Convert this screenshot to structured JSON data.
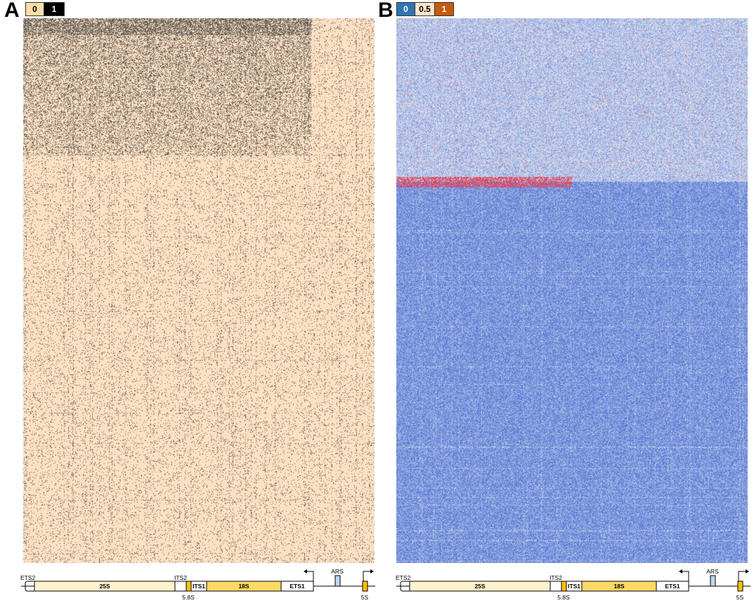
{
  "panels": [
    {
      "letter": "A",
      "legend": [
        {
          "label": "0",
          "color": "#f9dfa6",
          "text_color": "#000000"
        },
        {
          "label": "1",
          "color": "#000000",
          "text_color": "#ffffff"
        }
      ]
    },
    {
      "letter": "B",
      "legend": [
        {
          "label": "0",
          "color": "#2e75b6",
          "text_color": "#ffffff"
        },
        {
          "label": "0.5",
          "color": "#fbe5c8",
          "text_color": "#000000"
        },
        {
          "label": "1",
          "color": "#c55a11",
          "text_color": "#ffffff"
        }
      ]
    }
  ],
  "chart_data": [
    {
      "type": "heatmap",
      "panel": "A",
      "value_scale": [
        0,
        1
      ],
      "colors": {
        "low": "#fde0c3",
        "high": "#3a3a3a"
      },
      "row_blocks": [
        {
          "rows_fraction": [
            0.0,
            0.25
          ],
          "column_range_fraction": [
            0.0,
            0.82
          ],
          "mean_value": 0.3
        },
        {
          "rows_fraction": [
            0.25,
            1.0
          ],
          "column_range_fraction": [
            0.0,
            1.0
          ],
          "mean_value": 0.06
        }
      ]
    },
    {
      "type": "heatmap",
      "panel": "B",
      "value_scale": [
        0,
        0.5,
        1
      ],
      "colors": {
        "low": "#5b7bd5",
        "mid": "#dfe8f2",
        "high": "#e0203a"
      },
      "row_blocks": [
        {
          "rows_fraction": [
            0.0,
            0.3
          ],
          "mean_value": 0.35
        },
        {
          "rows_fraction": [
            0.29,
            0.31
          ],
          "mean_value": 0.9
        },
        {
          "rows_fraction": [
            0.31,
            1.0
          ],
          "mean_value": 0.12
        }
      ]
    }
  ],
  "gene_map": {
    "labels": {
      "ets2": "ETS2",
      "s25": "25S",
      "its2": "ITS2",
      "s58": "5.8S",
      "its1": "ITS1",
      "s18": "18S",
      "ets1": "ETS1",
      "ars": "ARS",
      "s5": "5S"
    },
    "colors": {
      "pale": "#fff2cc",
      "gold": "#ffd966",
      "orange": "#ffc000",
      "ars": "#bdd7ee"
    }
  }
}
